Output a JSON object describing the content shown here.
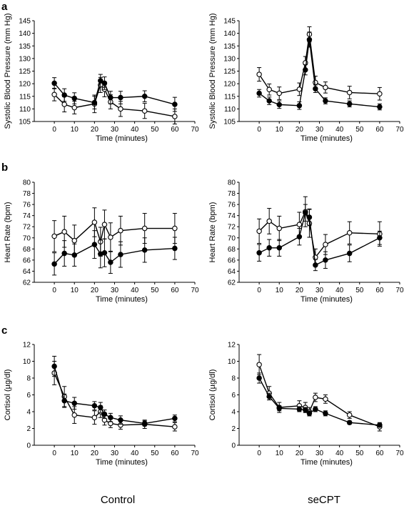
{
  "panel_letters": [
    "a",
    "b",
    "c"
  ],
  "group_labels": [
    "Control",
    "seCPT"
  ],
  "chart_data": [
    {
      "id": "sbp-control",
      "type": "line",
      "row": 0,
      "col": 0,
      "xlabel": "Time (minutes)",
      "ylabel": "Systolic Blood Pressure (mm Hg)",
      "xlim": [
        -10,
        70
      ],
      "ylim": [
        105,
        145
      ],
      "xticks": [
        0,
        10,
        20,
        30,
        40,
        50,
        60,
        70
      ],
      "yticks": [
        105,
        110,
        115,
        120,
        125,
        130,
        135,
        140,
        145
      ],
      "series": [
        {
          "marker": "filled",
          "x": [
            0,
            5,
            10,
            20,
            23,
            25,
            28,
            33,
            45,
            60
          ],
          "y": [
            120.2,
            115.5,
            114.2,
            112.5,
            121.2,
            120.2,
            114.5,
            114.5,
            115.0,
            111.8
          ],
          "err": [
            2.2,
            2.5,
            2.2,
            2.5,
            2.5,
            2.5,
            2.5,
            2.5,
            2.2,
            2.8
          ]
        },
        {
          "marker": "open",
          "x": [
            0,
            5,
            10,
            20,
            23,
            25,
            28,
            33,
            45,
            60
          ],
          "y": [
            115.7,
            111.8,
            110.5,
            112.0,
            119.5,
            117.8,
            112.8,
            110.0,
            109.2,
            107.0
          ],
          "err": [
            2.5,
            3.0,
            2.5,
            3.5,
            3.0,
            3.0,
            2.8,
            3.0,
            3.0,
            3.0
          ]
        }
      ]
    },
    {
      "id": "sbp-secpt",
      "type": "line",
      "row": 0,
      "col": 1,
      "xlabel": "Time (minutes)",
      "ylabel": "Systolic Blood Pressure (mm Hg)",
      "xlim": [
        -10,
        70
      ],
      "ylim": [
        105,
        145
      ],
      "xticks": [
        0,
        10,
        20,
        30,
        40,
        50,
        60,
        70
      ],
      "yticks": [
        105,
        110,
        115,
        120,
        125,
        130,
        135,
        140,
        145
      ],
      "series": [
        {
          "marker": "filled",
          "x": [
            0,
            5,
            10,
            20,
            23,
            25,
            28,
            33,
            45,
            60
          ],
          "y": [
            116.2,
            113.2,
            111.7,
            111.3,
            125.5,
            137.5,
            118.0,
            113.2,
            112.0,
            110.8
          ],
          "err": [
            1.5,
            1.5,
            1.5,
            1.5,
            2.0,
            3.0,
            1.5,
            1.2,
            1.2,
            1.2
          ]
        },
        {
          "marker": "open",
          "x": [
            0,
            5,
            10,
            20,
            23,
            25,
            28,
            33,
            45,
            60
          ],
          "y": [
            123.7,
            117.7,
            116.2,
            117.8,
            128.3,
            139.6,
            120.5,
            118.5,
            116.5,
            116.0
          ],
          "err": [
            2.7,
            2.2,
            2.5,
            2.5,
            2.5,
            3.0,
            2.5,
            2.2,
            2.5,
            2.5
          ]
        }
      ]
    },
    {
      "id": "hr-control",
      "type": "line",
      "row": 1,
      "col": 0,
      "xlabel": "Time (minutes)",
      "ylabel": "Heart Rate (bpm)",
      "xlim": [
        -10,
        70
      ],
      "ylim": [
        62,
        80
      ],
      "xticks": [
        0,
        10,
        20,
        30,
        40,
        50,
        60,
        70
      ],
      "yticks": [
        62,
        64,
        66,
        68,
        70,
        72,
        74,
        76,
        78,
        80
      ],
      "series": [
        {
          "marker": "filled",
          "x": [
            0,
            5,
            10,
            20,
            23,
            25,
            28,
            33,
            45,
            60
          ],
          "y": [
            65.3,
            67.2,
            66.9,
            68.8,
            67.1,
            67.3,
            65.6,
            67.0,
            67.8,
            68.1
          ],
          "err": [
            2.0,
            2.3,
            2.0,
            2.5,
            2.5,
            2.5,
            2.0,
            2.3,
            2.2,
            2.0
          ]
        },
        {
          "marker": "open",
          "x": [
            0,
            5,
            10,
            20,
            23,
            25,
            28,
            33,
            45,
            60
          ],
          "y": [
            70.3,
            71.1,
            69.5,
            72.8,
            69.3,
            72.4,
            70.1,
            71.3,
            71.7,
            71.7
          ],
          "err": [
            2.8,
            2.8,
            2.8,
            2.6,
            2.6,
            2.6,
            2.6,
            2.6,
            2.7,
            2.7
          ]
        }
      ]
    },
    {
      "id": "hr-secpt",
      "type": "line",
      "row": 1,
      "col": 1,
      "xlabel": "Time (minutes)",
      "ylabel": "Heart Rate (bpm)",
      "xlim": [
        -10,
        70
      ],
      "ylim": [
        62,
        80
      ],
      "xticks": [
        0,
        10,
        20,
        30,
        40,
        50,
        60,
        70
      ],
      "yticks": [
        62,
        64,
        66,
        68,
        70,
        72,
        74,
        76,
        78,
        80
      ],
      "series": [
        {
          "marker": "filled",
          "x": [
            0,
            5,
            10,
            20,
            23,
            25,
            28,
            33,
            45,
            60
          ],
          "y": [
            67.3,
            68.2,
            68.2,
            70.2,
            74.5,
            73.7,
            65.1,
            66.0,
            67.2,
            70.0
          ],
          "err": [
            1.5,
            1.5,
            1.5,
            1.5,
            1.5,
            1.5,
            1.0,
            1.5,
            1.5,
            1.2
          ]
        },
        {
          "marker": "open",
          "x": [
            0,
            5,
            10,
            20,
            23,
            25,
            28,
            33,
            45,
            60
          ],
          "y": [
            71.2,
            73.0,
            71.7,
            72.4,
            74.7,
            72.6,
            66.5,
            68.8,
            70.9,
            70.7
          ],
          "err": [
            2.2,
            2.3,
            2.2,
            2.2,
            2.7,
            2.5,
            1.5,
            1.8,
            2.0,
            2.2
          ]
        }
      ]
    },
    {
      "id": "cortisol-control",
      "type": "line",
      "row": 2,
      "col": 0,
      "xlabel": "Time (minutes)",
      "ylabel": "Cortisol (µg/dl)",
      "xlim": [
        -10,
        70
      ],
      "ylim": [
        0,
        12
      ],
      "xticks": [
        0,
        10,
        20,
        30,
        40,
        50,
        60,
        70
      ],
      "yticks": [
        0,
        2,
        4,
        6,
        8,
        10,
        12
      ],
      "series": [
        {
          "marker": "filled",
          "x": [
            0,
            5,
            10,
            20,
            23,
            25,
            28,
            33,
            45,
            60
          ],
          "y": [
            9.4,
            5.3,
            5.0,
            4.7,
            4.5,
            3.7,
            3.3,
            3.0,
            2.6,
            3.2
          ],
          "err": [
            1.2,
            0.8,
            0.7,
            0.5,
            0.6,
            0.5,
            0.5,
            0.5,
            0.3,
            0.4
          ]
        },
        {
          "marker": "open",
          "x": [
            0,
            5,
            10,
            20,
            23,
            25,
            28,
            33,
            45,
            60
          ],
          "y": [
            8.6,
            5.8,
            3.6,
            3.3,
            4.0,
            3.0,
            2.6,
            2.4,
            2.5,
            2.2
          ],
          "err": [
            1.4,
            1.2,
            1.0,
            0.8,
            0.7,
            0.6,
            0.5,
            0.5,
            0.5,
            0.5
          ]
        }
      ]
    },
    {
      "id": "cortisol-secpt",
      "type": "line",
      "row": 2,
      "col": 1,
      "xlabel": "Time (minutes)",
      "ylabel": "Cortisol (µg/dl)",
      "xlim": [
        -10,
        70
      ],
      "ylim": [
        0,
        12
      ],
      "xticks": [
        0,
        10,
        20,
        30,
        40,
        50,
        60,
        70
      ],
      "yticks": [
        0,
        2,
        4,
        6,
        8,
        10,
        12
      ],
      "series": [
        {
          "marker": "filled",
          "x": [
            0,
            5,
            10,
            20,
            23,
            25,
            28,
            33,
            45,
            60
          ],
          "y": [
            8.0,
            5.8,
            4.4,
            4.3,
            4.2,
            3.8,
            4.3,
            3.8,
            2.7,
            2.4
          ],
          "err": [
            0.6,
            0.4,
            0.3,
            0.3,
            0.3,
            0.3,
            0.3,
            0.3,
            0.2,
            0.2
          ]
        },
        {
          "marker": "open",
          "x": [
            0,
            5,
            10,
            20,
            23,
            25,
            28,
            33,
            45,
            60
          ],
          "y": [
            9.6,
            6.2,
            4.5,
            4.7,
            4.5,
            4.0,
            5.7,
            5.5,
            3.6,
            2.2
          ],
          "err": [
            1.2,
            0.8,
            0.6,
            0.6,
            0.6,
            0.5,
            0.5,
            0.5,
            0.4,
            0.5
          ]
        }
      ]
    }
  ]
}
